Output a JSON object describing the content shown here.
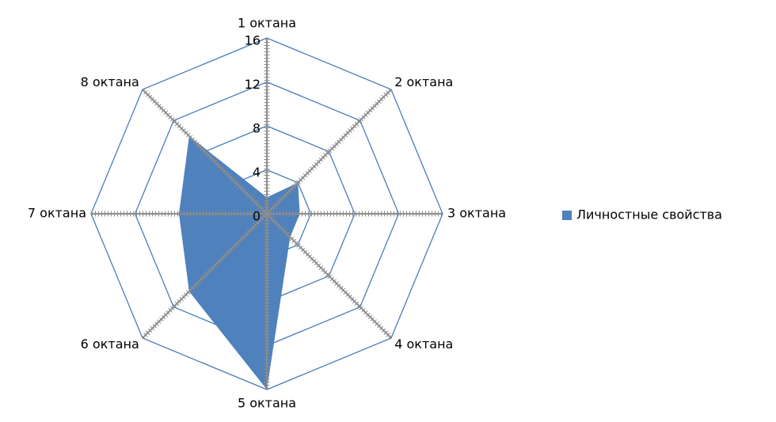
{
  "chart_data": {
    "type": "radar",
    "categories": [
      "1 октана",
      "2 октана",
      "3 октана",
      "4 октана",
      "5 октана",
      "6 октана",
      "7 октана",
      "8 октана"
    ],
    "series": [
      {
        "name": "Личностные свойства",
        "color": "#4f81bd",
        "values": [
          1.5,
          4,
          3,
          3,
          16,
          10,
          8,
          10
        ]
      }
    ],
    "ylim": [
      0,
      16
    ],
    "yticks": [
      0,
      4,
      8,
      12,
      16
    ],
    "grid": true,
    "legend": "right"
  }
}
